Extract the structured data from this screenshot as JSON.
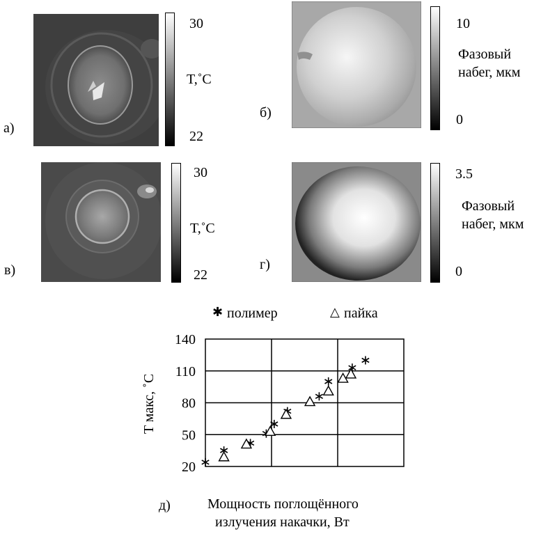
{
  "panels": {
    "a": {
      "letter": "а)",
      "colorbar_max": "30",
      "colorbar_min": "22",
      "colorbar_label": "T,˚C"
    },
    "b": {
      "letter": "б)",
      "colorbar_max": "10",
      "colorbar_min": "0",
      "colorbar_label_line1": "Фазовый",
      "colorbar_label_line2": "набег, мкм"
    },
    "v": {
      "letter": "в)",
      "colorbar_max": "30",
      "colorbar_min": "22",
      "colorbar_label": "T,˚C"
    },
    "g": {
      "letter": "г)",
      "colorbar_max": "3.5",
      "colorbar_min": "0",
      "colorbar_label_line1": "Фазовый",
      "colorbar_label_line2": "набег, мкм"
    }
  },
  "chart": {
    "panel_letter": "д)",
    "legend": {
      "polymer_symbol": "✱",
      "polymer_label": "полимер",
      "solder_symbol": "△",
      "solder_label": "пайка"
    }
  },
  "chart_data": {
    "type": "scatter",
    "xlabel_line1": "Мощность поглощённого",
    "xlabel_line2": "излучения накачки, Вт",
    "ylabel": "T макс, ˚C",
    "xlim": [
      0,
      300
    ],
    "ylim": [
      20,
      140
    ],
    "x_ticks": [
      "0",
      "100",
      "200",
      "300"
    ],
    "y_ticks": [
      "20",
      "50",
      "80",
      "110",
      "140"
    ],
    "grid": true,
    "legend_position": "top",
    "series": [
      {
        "name": "полимер",
        "marker": "asterisk",
        "points": [
          [
            0,
            24
          ],
          [
            28,
            35
          ],
          [
            68,
            42
          ],
          [
            92,
            51
          ],
          [
            104,
            60
          ],
          [
            124,
            72
          ],
          [
            172,
            86
          ],
          [
            186,
            100
          ],
          [
            222,
            113
          ],
          [
            242,
            120
          ]
        ]
      },
      {
        "name": "пайка",
        "marker": "triangle",
        "points": [
          [
            28,
            29
          ],
          [
            62,
            41
          ],
          [
            98,
            53
          ],
          [
            122,
            69
          ],
          [
            158,
            81
          ],
          [
            186,
            91
          ],
          [
            208,
            103
          ],
          [
            220,
            107
          ]
        ]
      }
    ]
  }
}
